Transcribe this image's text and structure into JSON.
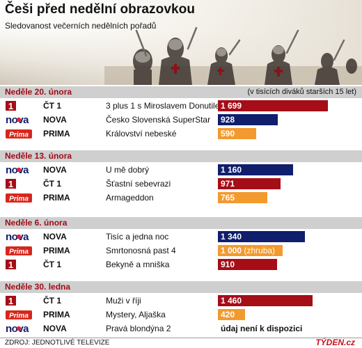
{
  "title": "Češi před nedělní obrazovkou",
  "subtitle": "Sledovanost večerních nedělních pořadů",
  "unit_note": "(v tisících diváků starších 15 let)",
  "source": "ZDROJ: JEDNOTLIVÉ TELEVIZE",
  "brand": "TÝDEN.cz",
  "logo_text": {
    "ct1": "1",
    "nova": "nova",
    "prima": "Prima"
  },
  "colors": {
    "ct1": "#a50d17",
    "nova": "#101e6c",
    "prima": "#f39a2e",
    "header_bar": "#cfcfcf",
    "date_text": "#9e0a14"
  },
  "scale_max": 1700,
  "chart_data": {
    "type": "bar",
    "orientation": "horizontal",
    "unit": "v tisících diváků starších 15 let",
    "groups": [
      {
        "label": "Neděle 20. února",
        "rows": [
          {
            "logo": "ct1",
            "channel": "ČT 1",
            "show": "3 plus 1 s Miroslavem Donutilem",
            "value": 1699,
            "value_label": "1 699"
          },
          {
            "logo": "nova",
            "channel": "NOVA",
            "show": "Česko Slovenská SuperStar",
            "value": 928,
            "value_label": "928"
          },
          {
            "logo": "prima",
            "channel": "PRIMA",
            "show": "Království nebeské",
            "value": 590,
            "value_label": "590"
          }
        ]
      },
      {
        "label": "Neděle 13. února",
        "rows": [
          {
            "logo": "nova",
            "channel": "NOVA",
            "show": "U mě dobrý",
            "value": 1160,
            "value_label": "1 160"
          },
          {
            "logo": "ct1",
            "channel": "ČT 1",
            "show": "Šťastní sebevrazi",
            "value": 971,
            "value_label": "971"
          },
          {
            "logo": "prima",
            "channel": "PRIMA",
            "show": "Armageddon",
            "value": 765,
            "value_label": "765"
          }
        ]
      },
      {
        "label": "Neděle 6. února",
        "rows": [
          {
            "logo": "nova",
            "channel": "NOVA",
            "show": "Tisíc a jedna noc",
            "value": 1340,
            "value_label": "1 340"
          },
          {
            "logo": "prima",
            "channel": "PRIMA",
            "show": "Smrtonosná past 4",
            "value": 1000,
            "value_label": "1 000",
            "value_note": "(zhruba)"
          },
          {
            "logo": "ct1",
            "channel": "ČT 1",
            "show": "Bekyně a mniška",
            "value": 910,
            "value_label": "910"
          }
        ]
      },
      {
        "label": "Neděle 30. ledna",
        "rows": [
          {
            "logo": "ct1",
            "channel": "ČT 1",
            "show": "Muži v říji",
            "value": 1460,
            "value_label": "1 460"
          },
          {
            "logo": "prima",
            "channel": "PRIMA",
            "show": "Mystery, Aljaška",
            "value": 420,
            "value_label": "420"
          },
          {
            "logo": "nova",
            "channel": "NOVA",
            "show": "Pravá blondýna 2",
            "value": null,
            "na_label": "údaj není k dispozici"
          }
        ]
      }
    ]
  }
}
